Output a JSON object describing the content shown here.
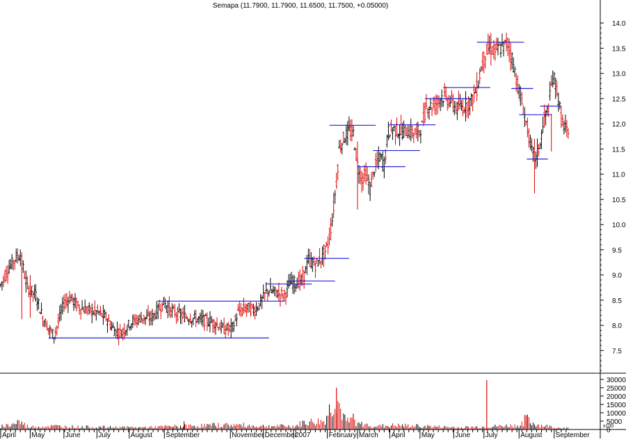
{
  "title": "Semapa (11.7900, 11.7900, 11.6500, 11.7500, +0.05000)",
  "colors": {
    "up": "#000000",
    "down": "#e00000",
    "level": "#1f1fd6",
    "axis": "#000000",
    "background": "#ffffff"
  },
  "chart_data": [
    {
      "type": "ohlc",
      "title": "Semapa (11.7900, 11.7900, 11.6500, 11.7500, +0.05000)",
      "ylim": [
        7.05,
        14.25
      ],
      "y_ticks": [
        "14.0",
        "13.5",
        "13.0",
        "12.5",
        "12.0",
        "11.5",
        "11.0",
        "10.5",
        "10.0",
        "9.5",
        "9.0",
        "8.5",
        "8.0",
        "7.5"
      ],
      "y_tick_values": [
        14.0,
        13.5,
        13.0,
        12.5,
        12.0,
        11.5,
        11.0,
        10.5,
        10.0,
        9.5,
        9.0,
        8.5,
        8.0,
        7.5
      ],
      "x_ticks": [
        "April",
        "May",
        "June",
        "July",
        "August",
        "September",
        "November",
        "December",
        "2007",
        "February",
        "March",
        "April",
        "May",
        "June",
        "July",
        "August",
        "September"
      ],
      "x_tick_day_index": [
        0,
        42,
        90,
        137,
        183,
        233,
        327,
        374,
        417,
        465,
        508,
        554,
        597,
        645,
        688,
        738,
        788
      ],
      "price_path": [
        [
          0,
          8.8
        ],
        [
          10,
          9.1
        ],
        [
          22,
          9.35
        ],
        [
          28,
          9.4
        ],
        [
          34,
          9.0
        ],
        [
          38,
          8.75
        ],
        [
          50,
          8.6
        ],
        [
          60,
          8.15
        ],
        [
          70,
          7.9
        ],
        [
          76,
          7.8
        ],
        [
          82,
          8.05
        ],
        [
          90,
          8.45
        ],
        [
          100,
          8.55
        ],
        [
          112,
          8.35
        ],
        [
          125,
          8.3
        ],
        [
          140,
          8.25
        ],
        [
          150,
          8.15
        ],
        [
          162,
          7.9
        ],
        [
          172,
          7.85
        ],
        [
          185,
          8.05
        ],
        [
          200,
          8.15
        ],
        [
          215,
          8.15
        ],
        [
          224,
          8.3
        ],
        [
          232,
          8.45
        ],
        [
          242,
          8.3
        ],
        [
          255,
          8.2
        ],
        [
          270,
          8.15
        ],
        [
          290,
          8.1
        ],
        [
          305,
          8.05
        ],
        [
          318,
          7.92
        ],
        [
          330,
          7.95
        ],
        [
          338,
          8.25
        ],
        [
          350,
          8.35
        ],
        [
          362,
          8.3
        ],
        [
          370,
          8.45
        ],
        [
          380,
          8.7
        ],
        [
          392,
          8.65
        ],
        [
          404,
          8.6
        ],
        [
          412,
          8.85
        ],
        [
          422,
          8.85
        ],
        [
          430,
          8.9
        ],
        [
          438,
          9.3
        ],
        [
          448,
          9.2
        ],
        [
          458,
          9.35
        ],
        [
          466,
          9.6
        ],
        [
          472,
          10.1
        ],
        [
          478,
          10.85
        ],
        [
          482,
          11.5
        ],
        [
          488,
          11.7
        ],
        [
          496,
          11.85
        ],
        [
          502,
          11.8
        ],
        [
          508,
          11.2
        ],
        [
          514,
          10.9
        ],
        [
          520,
          11.0
        ],
        [
          526,
          10.7
        ],
        [
          532,
          11.1
        ],
        [
          540,
          11.35
        ],
        [
          546,
          11.2
        ],
        [
          552,
          11.85
        ],
        [
          560,
          11.9
        ],
        [
          568,
          11.85
        ],
        [
          580,
          11.85
        ],
        [
          592,
          11.8
        ],
        [
          600,
          11.95
        ],
        [
          606,
          12.35
        ],
        [
          616,
          12.35
        ],
        [
          628,
          12.55
        ],
        [
          640,
          12.45
        ],
        [
          650,
          12.3
        ],
        [
          660,
          12.35
        ],
        [
          670,
          12.45
        ],
        [
          678,
          12.7
        ],
        [
          684,
          13.1
        ],
        [
          690,
          13.4
        ],
        [
          696,
          13.5
        ],
        [
          704,
          13.45
        ],
        [
          712,
          13.5
        ],
        [
          722,
          13.6
        ],
        [
          728,
          13.3
        ],
        [
          734,
          12.9
        ],
        [
          740,
          12.5
        ],
        [
          744,
          12.3
        ],
        [
          750,
          11.9
        ],
        [
          756,
          11.45
        ],
        [
          762,
          11.3
        ],
        [
          768,
          11.6
        ],
        [
          774,
          12.1
        ],
        [
          780,
          12.3
        ],
        [
          786,
          12.95
        ],
        [
          792,
          12.7
        ],
        [
          798,
          12.1
        ],
        [
          804,
          11.9
        ],
        [
          808,
          11.75
        ]
      ],
      "support_resistance": [
        {
          "x0": 68,
          "x1": 382,
          "y": 7.75
        },
        {
          "x0": 222,
          "x1": 405,
          "y": 8.48
        },
        {
          "x0": 377,
          "x1": 443,
          "y": 8.82
        },
        {
          "x0": 410,
          "x1": 476,
          "y": 8.88
        },
        {
          "x0": 432,
          "x1": 496,
          "y": 9.33
        },
        {
          "x0": 468,
          "x1": 534,
          "y": 11.97
        },
        {
          "x0": 508,
          "x1": 576,
          "y": 11.15
        },
        {
          "x0": 530,
          "x1": 597,
          "y": 11.47
        },
        {
          "x0": 552,
          "x1": 619,
          "y": 11.98
        },
        {
          "x0": 604,
          "x1": 670,
          "y": 12.5
        },
        {
          "x0": 630,
          "x1": 697,
          "y": 12.72
        },
        {
          "x0": 678,
          "x1": 745,
          "y": 13.62
        },
        {
          "x0": 727,
          "x1": 758,
          "y": 12.7
        },
        {
          "x0": 738,
          "x1": 784,
          "y": 12.18
        },
        {
          "x0": 749,
          "x1": 779,
          "y": 11.3
        },
        {
          "x0": 768,
          "x1": 798,
          "y": 12.35
        }
      ],
      "spikes": [
        {
          "x": 30,
          "high": 9.15,
          "low": 8.12
        },
        {
          "x": 42,
          "high": 9.0,
          "low": 8.15
        },
        {
          "x": 508,
          "high": 11.65,
          "low": 10.3
        },
        {
          "x": 760,
          "high": 11.7,
          "low": 10.62
        },
        {
          "x": 784,
          "high": 12.2,
          "low": 11.45
        }
      ]
    },
    {
      "type": "bar",
      "title": "",
      "ylim": [
        0,
        32000
      ],
      "y_ticks": [
        "30000",
        "25000",
        "20000",
        "15000",
        "10000",
        "5000",
        "0"
      ],
      "y_tick_values": [
        30000,
        25000,
        20000,
        15000,
        10000,
        5000,
        0
      ],
      "y_unit_label": "x100",
      "volume_path": [
        [
          0,
          2500
        ],
        [
          15,
          3500
        ],
        [
          25,
          6000
        ],
        [
          40,
          2000
        ],
        [
          80,
          2500
        ],
        [
          100,
          2000
        ],
        [
          200,
          1500
        ],
        [
          260,
          2500
        ],
        [
          330,
          3500
        ],
        [
          370,
          2500
        ],
        [
          420,
          2500
        ],
        [
          430,
          5000
        ],
        [
          460,
          6000
        ],
        [
          472,
          18000
        ],
        [
          478,
          25000
        ],
        [
          484,
          14000
        ],
        [
          490,
          7000
        ],
        [
          496,
          5000
        ],
        [
          502,
          9000
        ],
        [
          508,
          4000
        ],
        [
          540,
          2500
        ],
        [
          560,
          3000
        ],
        [
          600,
          2500
        ],
        [
          650,
          1500
        ],
        [
          688,
          2000
        ],
        [
          740,
          3000
        ],
        [
          748,
          8000
        ],
        [
          754,
          5000
        ],
        [
          770,
          3000
        ],
        [
          790,
          1500
        ],
        [
          808,
          1000
        ]
      ],
      "volume_spikes": [
        [
          76,
          2400
        ],
        [
          261,
          5000
        ],
        [
          478,
          25000
        ],
        [
          502,
          9500
        ],
        [
          692,
          29500
        ],
        [
          748,
          8500
        ]
      ]
    }
  ]
}
